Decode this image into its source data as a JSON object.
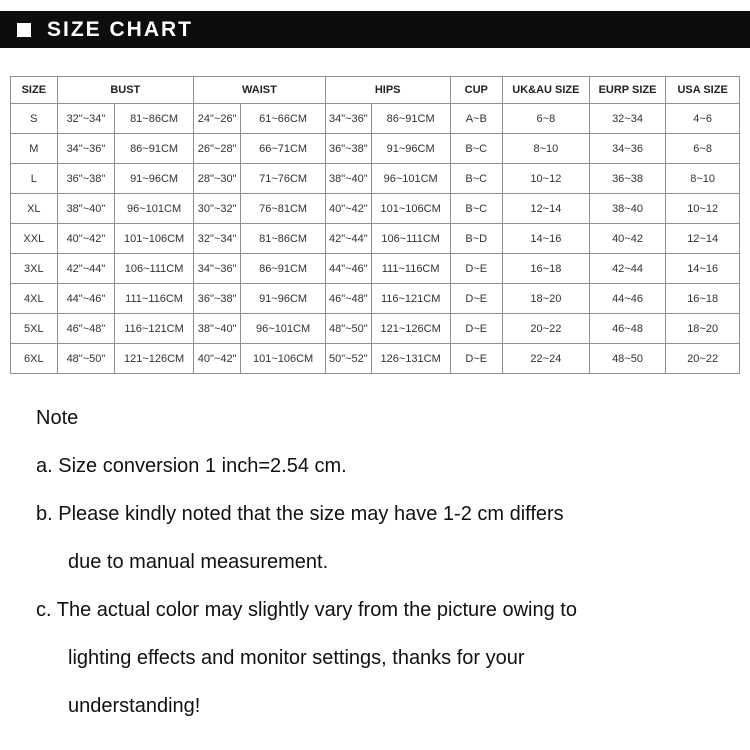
{
  "header": {
    "title": "SIZE CHART",
    "bullet_icon": "white-square",
    "bar_bg": "#0d0d0d",
    "bar_text_color": "#ffffff"
  },
  "table": {
    "columns": [
      {
        "label": "SIZE",
        "span": 1
      },
      {
        "label": "BUST",
        "span": 2
      },
      {
        "label": "WAIST",
        "span": 2
      },
      {
        "label": "HIPS",
        "span": 2
      },
      {
        "label": "CUP",
        "span": 1
      },
      {
        "label": "UK&AU SIZE",
        "span": 1
      },
      {
        "label": "EURP SIZE",
        "span": 1
      },
      {
        "label": "USA SIZE",
        "span": 1
      }
    ],
    "rows": [
      [
        "S",
        "32\"~34\"",
        "81~86CM",
        "24\"~26\"",
        "61~66CM",
        "34\"~36\"",
        "86~91CM",
        "A~B",
        "6~8",
        "32~34",
        "4~6"
      ],
      [
        "M",
        "34\"~36\"",
        "86~91CM",
        "26\"~28\"",
        "66~71CM",
        "36\"~38\"",
        "91~96CM",
        "B~C",
        "8~10",
        "34~36",
        "6~8"
      ],
      [
        "L",
        "36\"~38\"",
        "91~96CM",
        "28\"~30\"",
        "71~76CM",
        "38\"~40\"",
        "96~101CM",
        "B~C",
        "10~12",
        "36~38",
        "8~10"
      ],
      [
        "XL",
        "38\"~40\"",
        "96~101CM",
        "30\"~32\"",
        "76~81CM",
        "40\"~42\"",
        "101~106CM",
        "B~C",
        "12~14",
        "38~40",
        "10~12"
      ],
      [
        "XXL",
        "40\"~42\"",
        "101~106CM",
        "32\"~34\"",
        "81~86CM",
        "42\"~44\"",
        "106~111CM",
        "B~D",
        "14~16",
        "40~42",
        "12~14"
      ],
      [
        "3XL",
        "42\"~44\"",
        "106~111CM",
        "34\"~36\"",
        "86~91CM",
        "44\"~46\"",
        "111~116CM",
        "D~E",
        "16~18",
        "42~44",
        "14~16"
      ],
      [
        "4XL",
        "44\"~46\"",
        "111~116CM",
        "36\"~38\"",
        "91~96CM",
        "46\"~48\"",
        "116~121CM",
        "D~E",
        "18~20",
        "44~46",
        "16~18"
      ],
      [
        "5XL",
        "46\"~48\"",
        "116~121CM",
        "38\"~40\"",
        "96~101CM",
        "48\"~50\"",
        "121~126CM",
        "D~E",
        "20~22",
        "46~48",
        "18~20"
      ],
      [
        "6XL",
        "48\"~50\"",
        "121~126CM",
        "40\"~42\"",
        "101~106CM",
        "50\"~52\"",
        "126~131CM",
        "D~E",
        "22~24",
        "48~50",
        "20~22"
      ]
    ],
    "border_color": "#8f8f8f",
    "text_color": "#333333"
  },
  "notes": {
    "title": "Note",
    "items": [
      {
        "lines": [
          "a. Size conversion 1 inch=2.54 cm."
        ]
      },
      {
        "lines": [
          "b. Please kindly noted that the size may have 1-2 cm differs",
          "due to manual measurement."
        ]
      },
      {
        "lines": [
          "c. The actual color may slightly vary from the picture owing to",
          "lighting effects and monitor settings, thanks for your",
          "understanding!"
        ]
      }
    ],
    "text_color": "#111111"
  }
}
